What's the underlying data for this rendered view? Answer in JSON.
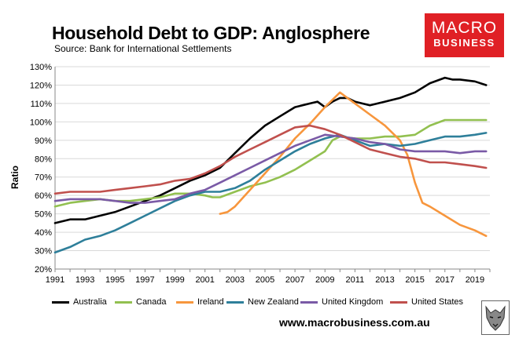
{
  "chart_data": {
    "type": "line",
    "title": "Household Debt to GDP: Anglosphere",
    "subtitle": "Source: Bank for International Settlements",
    "xlabel": "",
    "ylabel": "Ratio",
    "xlim": [
      1991,
      2020
    ],
    "ylim": [
      20,
      130
    ],
    "x_ticks": [
      "1991",
      "1993",
      "1995",
      "1997",
      "1999",
      "2001",
      "2003",
      "2005",
      "2007",
      "2009",
      "2011",
      "2013",
      "2015",
      "2017",
      "2019"
    ],
    "y_ticks": [
      "20%",
      "30%",
      "40%",
      "50%",
      "60%",
      "70%",
      "80%",
      "90%",
      "100%",
      "110%",
      "120%",
      "130%"
    ],
    "grid": true,
    "legend": "bottom",
    "series": [
      {
        "name": "Australia",
        "color": "#000000",
        "points": [
          [
            1991,
            45
          ],
          [
            1992,
            47
          ],
          [
            1993,
            47
          ],
          [
            1994,
            49
          ],
          [
            1995,
            51
          ],
          [
            1996,
            54
          ],
          [
            1997,
            57
          ],
          [
            1998,
            60
          ],
          [
            1999,
            64
          ],
          [
            2000,
            68
          ],
          [
            2001,
            71
          ],
          [
            2002,
            75
          ],
          [
            2003,
            83
          ],
          [
            2004,
            91
          ],
          [
            2005,
            98
          ],
          [
            2006,
            103
          ],
          [
            2007,
            108
          ],
          [
            2008,
            110
          ],
          [
            2008.5,
            111
          ],
          [
            2009,
            108
          ],
          [
            2009.5,
            111
          ],
          [
            2010,
            113
          ],
          [
            2010.5,
            113
          ],
          [
            2011,
            111
          ],
          [
            2012,
            109
          ],
          [
            2013,
            111
          ],
          [
            2014,
            113
          ],
          [
            2015,
            116
          ],
          [
            2016,
            121
          ],
          [
            2017,
            124
          ],
          [
            2017.5,
            123
          ],
          [
            2018,
            123
          ],
          [
            2019,
            122
          ],
          [
            2019.75,
            120
          ]
        ]
      },
      {
        "name": "Canada",
        "color": "#92c050",
        "points": [
          [
            1991,
            54
          ],
          [
            1992,
            56
          ],
          [
            1993,
            57
          ],
          [
            1994,
            58
          ],
          [
            1995,
            57
          ],
          [
            1996,
            57
          ],
          [
            1997,
            58
          ],
          [
            1998,
            59
          ],
          [
            1999,
            61
          ],
          [
            2000,
            61
          ],
          [
            2001,
            60
          ],
          [
            2001.5,
            59
          ],
          [
            2002,
            59
          ],
          [
            2003,
            62
          ],
          [
            2004,
            65
          ],
          [
            2005,
            67
          ],
          [
            2006,
            70
          ],
          [
            2007,
            74
          ],
          [
            2008,
            79
          ],
          [
            2009,
            84
          ],
          [
            2009.5,
            90
          ],
          [
            2010,
            92
          ],
          [
            2011,
            91
          ],
          [
            2012,
            91
          ],
          [
            2013,
            92
          ],
          [
            2014,
            92
          ],
          [
            2015,
            93
          ],
          [
            2016,
            98
          ],
          [
            2017,
            101
          ],
          [
            2018,
            101
          ],
          [
            2019,
            101
          ],
          [
            2019.75,
            101
          ]
        ]
      },
      {
        "name": "Ireland",
        "color": "#f7963d",
        "points": [
          [
            2002,
            50
          ],
          [
            2002.5,
            51
          ],
          [
            2003,
            54
          ],
          [
            2004,
            63
          ],
          [
            2005,
            72
          ],
          [
            2006,
            81
          ],
          [
            2007,
            91
          ],
          [
            2008,
            99
          ],
          [
            2009,
            108
          ],
          [
            2010,
            116
          ],
          [
            2010.5,
            113
          ],
          [
            2011,
            110
          ],
          [
            2012,
            104
          ],
          [
            2013,
            98
          ],
          [
            2014,
            90
          ],
          [
            2014.5,
            82
          ],
          [
            2015,
            67
          ],
          [
            2015.5,
            56
          ],
          [
            2016,
            54
          ],
          [
            2017,
            49
          ],
          [
            2018,
            44
          ],
          [
            2019,
            41
          ],
          [
            2019.75,
            38
          ]
        ]
      },
      {
        "name": "New Zealand",
        "color": "#2e7f9a",
        "points": [
          [
            1991,
            29
          ],
          [
            1992,
            32
          ],
          [
            1993,
            36
          ],
          [
            1994,
            38
          ],
          [
            1995,
            41
          ],
          [
            1996,
            45
          ],
          [
            1997,
            49
          ],
          [
            1998,
            53
          ],
          [
            1999,
            57
          ],
          [
            2000,
            60
          ],
          [
            2001,
            62
          ],
          [
            2002,
            62
          ],
          [
            2003,
            64
          ],
          [
            2004,
            68
          ],
          [
            2005,
            74
          ],
          [
            2006,
            79
          ],
          [
            2007,
            84
          ],
          [
            2008,
            88
          ],
          [
            2009,
            91
          ],
          [
            2010,
            93
          ],
          [
            2011,
            90
          ],
          [
            2012,
            87
          ],
          [
            2013,
            88
          ],
          [
            2014,
            87
          ],
          [
            2015,
            88
          ],
          [
            2016,
            90
          ],
          [
            2017,
            92
          ],
          [
            2018,
            92
          ],
          [
            2019,
            93
          ],
          [
            2019.75,
            94
          ]
        ]
      },
      {
        "name": "United Kingdom",
        "color": "#7a5aa6",
        "points": [
          [
            1991,
            57
          ],
          [
            1992,
            58
          ],
          [
            1993,
            58
          ],
          [
            1994,
            58
          ],
          [
            1995,
            57
          ],
          [
            1996,
            56
          ],
          [
            1997,
            56
          ],
          [
            1998,
            57
          ],
          [
            1999,
            58
          ],
          [
            2000,
            61
          ],
          [
            2001,
            63
          ],
          [
            2002,
            67
          ],
          [
            2003,
            71
          ],
          [
            2004,
            75
          ],
          [
            2005,
            79
          ],
          [
            2006,
            83
          ],
          [
            2007,
            87
          ],
          [
            2008,
            90
          ],
          [
            2009,
            93
          ],
          [
            2010,
            92
          ],
          [
            2011,
            91
          ],
          [
            2012,
            89
          ],
          [
            2013,
            88
          ],
          [
            2014,
            85
          ],
          [
            2015,
            84
          ],
          [
            2016,
            84
          ],
          [
            2017,
            84
          ],
          [
            2018,
            83
          ],
          [
            2019,
            84
          ],
          [
            2019.75,
            84
          ]
        ]
      },
      {
        "name": "United States",
        "color": "#c0504d",
        "points": [
          [
            1991,
            61
          ],
          [
            1992,
            62
          ],
          [
            1993,
            62
          ],
          [
            1994,
            62
          ],
          [
            1995,
            63
          ],
          [
            1996,
            64
          ],
          [
            1997,
            65
          ],
          [
            1998,
            66
          ],
          [
            1999,
            68
          ],
          [
            2000,
            69
          ],
          [
            2001,
            72
          ],
          [
            2002,
            76
          ],
          [
            2003,
            81
          ],
          [
            2004,
            85
          ],
          [
            2005,
            89
          ],
          [
            2006,
            93
          ],
          [
            2007,
            97
          ],
          [
            2008,
            98
          ],
          [
            2009,
            96
          ],
          [
            2010,
            93
          ],
          [
            2011,
            89
          ],
          [
            2012,
            85
          ],
          [
            2013,
            83
          ],
          [
            2014,
            81
          ],
          [
            2015,
            80
          ],
          [
            2016,
            78
          ],
          [
            2017,
            78
          ],
          [
            2018,
            77
          ],
          [
            2019,
            76
          ],
          [
            2019.75,
            75
          ]
        ]
      }
    ]
  },
  "branding": {
    "logo_line1": "MACRO",
    "logo_line2": "BUSINESS",
    "website": "www.macrobusiness.com.au",
    "accent_color": "#e02025"
  }
}
